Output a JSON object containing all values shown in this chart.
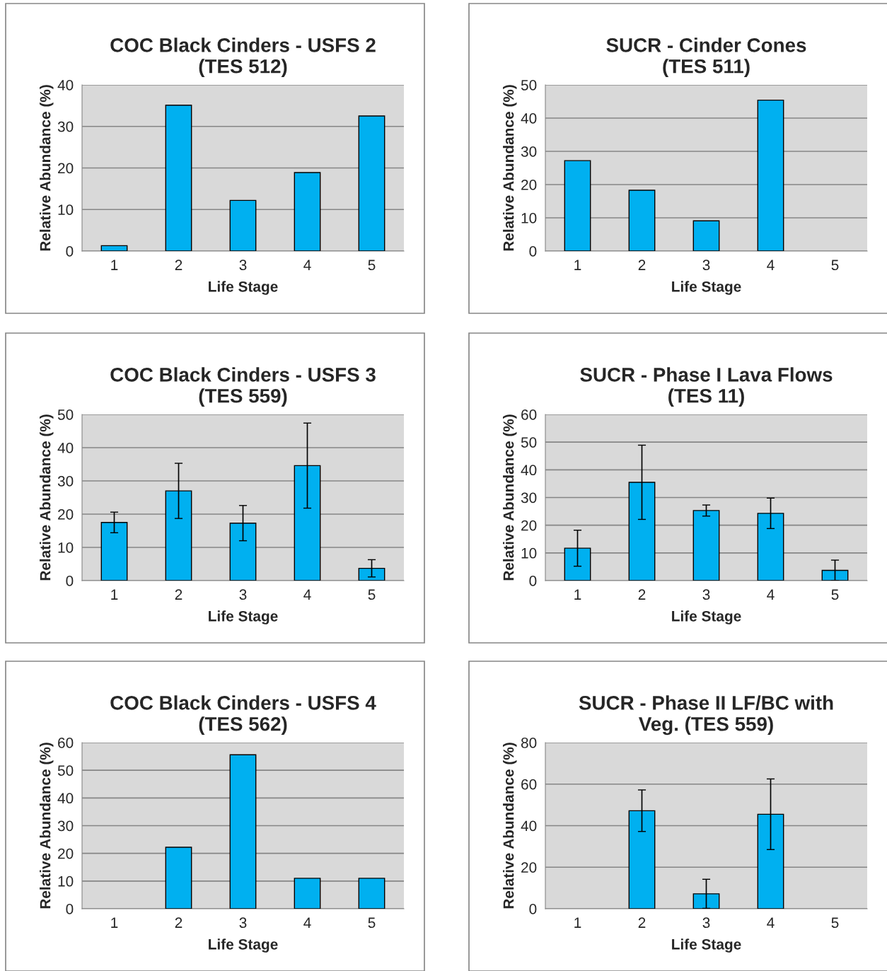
{
  "chart_data": [
    {
      "type": "bar",
      "title": "COC Black Cinders - USFS 2\n(TES 512)",
      "xlabel": "Life Stage",
      "ylabel": "Relative Abundance (%)",
      "categories": [
        "1",
        "2",
        "3",
        "4",
        "5"
      ],
      "values": [
        1.3,
        35.1,
        12.2,
        18.9,
        32.5
      ],
      "color": "#00b0f0",
      "ylim": [
        0,
        40
      ],
      "yticks": [
        0,
        10,
        20,
        30,
        40
      ],
      "grid": "y"
    },
    {
      "type": "bar",
      "title": "SUCR - Cinder Cones\n(TES 511)",
      "xlabel": "Life Stage",
      "ylabel": "Relative Abundance (%)",
      "categories": [
        "1",
        "2",
        "3",
        "4",
        "5"
      ],
      "values": [
        27.2,
        18.3,
        9.1,
        45.4,
        0
      ],
      "color": "#00b0f0",
      "ylim": [
        0,
        50
      ],
      "yticks": [
        0,
        10,
        20,
        30,
        40,
        50
      ],
      "grid": "y"
    },
    {
      "type": "bar",
      "title": "COC Black Cinders - USFS 3\n(TES 559)",
      "xlabel": "Life Stage",
      "ylabel": "Relative Abundance (%)",
      "categories": [
        "1",
        "2",
        "3",
        "4",
        "5"
      ],
      "values": [
        17.5,
        27.0,
        17.3,
        34.6,
        3.7
      ],
      "errors": [
        3.1,
        8.3,
        5.3,
        12.8,
        2.6
      ],
      "color": "#00b0f0",
      "ylim": [
        0,
        50
      ],
      "yticks": [
        0,
        10,
        20,
        30,
        40,
        50
      ],
      "grid": "y"
    },
    {
      "type": "bar",
      "title": "SUCR - Phase I Lava Flows\n(TES 11)",
      "xlabel": "Life Stage",
      "ylabel": "Relative Abundance (%)",
      "categories": [
        "1",
        "2",
        "3",
        "4",
        "5"
      ],
      "values": [
        11.7,
        35.5,
        25.3,
        24.3,
        3.7
      ],
      "errors": [
        6.5,
        13.4,
        2,
        5.5,
        3.7
      ],
      "color": "#00b0f0",
      "ylim": [
        0,
        60
      ],
      "yticks": [
        0,
        10,
        20,
        30,
        40,
        50,
        60
      ],
      "grid": "y"
    },
    {
      "type": "bar",
      "title": "COC Black Cinders - USFS 4\n(TES 562)",
      "xlabel": "Life Stage",
      "ylabel": "Relative Abundance (%)",
      "categories": [
        "1",
        "2",
        "3",
        "4",
        "5"
      ],
      "values": [
        0,
        22.2,
        55.6,
        11.0,
        11.0
      ],
      "color": "#00b0f0",
      "ylim": [
        0,
        60
      ],
      "yticks": [
        0,
        10,
        20,
        30,
        40,
        50,
        60
      ],
      "grid": "y"
    },
    {
      "type": "bar",
      "title": "SUCR - Phase II LF/BC with\nVeg. (TES 559)",
      "xlabel": "Life Stage",
      "ylabel": "Relative Abundance (%)",
      "categories": [
        "1",
        "2",
        "3",
        "4",
        "5"
      ],
      "values": [
        0,
        47.2,
        7.2,
        45.5,
        0
      ],
      "errors": [
        null,
        10,
        7,
        17,
        null
      ],
      "color": "#00b0f0",
      "ylim": [
        0,
        80
      ],
      "yticks": [
        0,
        20,
        40,
        60,
        80
      ],
      "grid": "y"
    }
  ]
}
